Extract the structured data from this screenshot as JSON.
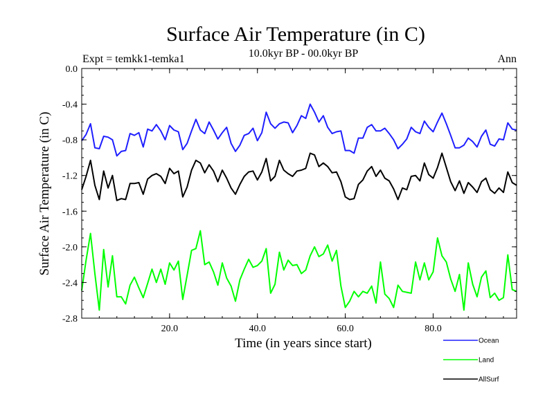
{
  "chart_data": {
    "type": "line",
    "title": "Surface Air Temperature (in C)",
    "subtitle_left": "Expt = temkk1-temka1",
    "subtitle_center": "10.0kyr BP - 00.0kyr BP",
    "subtitle_right": "Ann",
    "xlabel": "Time (in years since start)",
    "ylabel": "Surface Air Temperature (in C)",
    "xlim": [
      0,
      99
    ],
    "ylim": [
      -2.8,
      0.0
    ],
    "x_ticks": [
      20,
      40,
      60,
      80
    ],
    "x_tick_labels": [
      "20.0",
      "40.0",
      "60.0",
      "80.0"
    ],
    "y_ticks": [
      0.0,
      -0.4,
      -0.8,
      -1.2,
      -1.6,
      -2.0,
      -2.4,
      -2.8
    ],
    "y_tick_labels": [
      "0.0",
      "-0.4",
      "-0.8",
      "-1.2",
      "-1.6",
      "-2.0",
      "-2.4",
      "-2.8"
    ],
    "legend_position": "bottom-right",
    "x": [
      0,
      1,
      2,
      3,
      4,
      5,
      6,
      7,
      8,
      9,
      10,
      11,
      12,
      13,
      14,
      15,
      16,
      17,
      18,
      19,
      20,
      21,
      22,
      23,
      24,
      25,
      26,
      27,
      28,
      29,
      30,
      31,
      32,
      33,
      34,
      35,
      36,
      37,
      38,
      39,
      40,
      41,
      42,
      43,
      44,
      45,
      46,
      47,
      48,
      49,
      50,
      51,
      52,
      53,
      54,
      55,
      56,
      57,
      58,
      59,
      60,
      61,
      62,
      63,
      64,
      65,
      66,
      67,
      68,
      69,
      70,
      71,
      72,
      73,
      74,
      75,
      76,
      77,
      78,
      79,
      80,
      81,
      82,
      83,
      84,
      85,
      86,
      87,
      88,
      89,
      90,
      91,
      92,
      93,
      94,
      95,
      96,
      97,
      98,
      99
    ],
    "series": [
      {
        "name": "Ocean",
        "color": "#1e1eff",
        "values": [
          -0.81,
          -0.74,
          -0.62,
          -0.89,
          -0.9,
          -0.76,
          -0.77,
          -0.8,
          -0.98,
          -0.93,
          -0.92,
          -0.73,
          -0.75,
          -0.72,
          -0.88,
          -0.68,
          -0.7,
          -0.63,
          -0.7,
          -0.8,
          -0.64,
          -0.69,
          -0.71,
          -0.91,
          -0.84,
          -0.7,
          -0.57,
          -0.69,
          -0.73,
          -0.6,
          -0.69,
          -0.79,
          -0.72,
          -0.66,
          -0.84,
          -0.93,
          -0.86,
          -0.75,
          -0.73,
          -0.67,
          -0.81,
          -0.72,
          -0.49,
          -0.62,
          -0.67,
          -0.62,
          -0.6,
          -0.61,
          -0.72,
          -0.64,
          -0.53,
          -0.56,
          -0.4,
          -0.49,
          -0.6,
          -0.53,
          -0.66,
          -0.73,
          -0.71,
          -0.7,
          -0.92,
          -0.92,
          -0.95,
          -0.78,
          -0.78,
          -0.66,
          -0.63,
          -0.7,
          -0.7,
          -0.67,
          -0.73,
          -0.8,
          -0.9,
          -0.85,
          -0.79,
          -0.66,
          -0.71,
          -0.73,
          -0.59,
          -0.66,
          -0.71,
          -0.6,
          -0.5,
          -0.62,
          -0.75,
          -0.89,
          -0.89,
          -0.86,
          -0.78,
          -0.82,
          -0.88,
          -0.76,
          -0.69,
          -0.85,
          -0.87,
          -0.79,
          -0.8,
          -0.61,
          -0.68,
          -0.69
        ]
      },
      {
        "name": "Land",
        "color": "#00ff00",
        "values": [
          -2.49,
          -2.15,
          -1.85,
          -2.3,
          -2.71,
          -2.03,
          -2.45,
          -2.1,
          -2.56,
          -2.56,
          -2.64,
          -2.43,
          -2.34,
          -2.46,
          -2.57,
          -2.41,
          -2.25,
          -2.4,
          -2.25,
          -2.42,
          -2.18,
          -2.26,
          -2.16,
          -2.59,
          -2.32,
          -2.04,
          -2.02,
          -1.82,
          -2.2,
          -2.17,
          -2.28,
          -2.43,
          -2.18,
          -2.35,
          -2.44,
          -2.61,
          -2.37,
          -2.25,
          -2.14,
          -2.23,
          -2.21,
          -2.16,
          -2.02,
          -2.52,
          -2.42,
          -2.06,
          -2.26,
          -2.15,
          -2.21,
          -2.2,
          -2.3,
          -2.26,
          -2.1,
          -2.0,
          -2.11,
          -2.08,
          -1.98,
          -2.16,
          -2.04,
          -2.44,
          -2.68,
          -2.61,
          -2.5,
          -2.56,
          -2.5,
          -2.52,
          -2.44,
          -2.63,
          -2.17,
          -2.53,
          -2.58,
          -2.68,
          -2.43,
          -2.5,
          -2.51,
          -2.52,
          -2.17,
          -2.37,
          -2.18,
          -2.37,
          -2.28,
          -1.9,
          -2.1,
          -2.17,
          -2.36,
          -2.5,
          -2.31,
          -2.71,
          -2.18,
          -2.42,
          -2.56,
          -2.34,
          -2.27,
          -2.57,
          -2.52,
          -2.6,
          -2.57,
          -2.09,
          -2.48,
          -2.5
        ]
      },
      {
        "name": "AllSurf",
        "color": "#000000",
        "values": [
          -1.36,
          -1.21,
          -1.03,
          -1.31,
          -1.47,
          -1.15,
          -1.34,
          -1.2,
          -1.48,
          -1.46,
          -1.47,
          -1.29,
          -1.29,
          -1.28,
          -1.41,
          -1.24,
          -1.2,
          -1.18,
          -1.21,
          -1.29,
          -1.12,
          -1.18,
          -1.15,
          -1.44,
          -1.33,
          -1.14,
          -1.03,
          -1.06,
          -1.17,
          -1.08,
          -1.15,
          -1.27,
          -1.14,
          -1.23,
          -1.34,
          -1.41,
          -1.3,
          -1.21,
          -1.16,
          -1.15,
          -1.25,
          -1.16,
          -1.01,
          -1.26,
          -1.21,
          -1.03,
          -1.14,
          -1.18,
          -1.21,
          -1.15,
          -1.14,
          -1.12,
          -0.95,
          -0.97,
          -1.1,
          -1.06,
          -1.1,
          -1.17,
          -1.16,
          -1.27,
          -1.44,
          -1.47,
          -1.46,
          -1.3,
          -1.25,
          -1.15,
          -1.1,
          -1.21,
          -1.14,
          -1.23,
          -1.26,
          -1.35,
          -1.47,
          -1.34,
          -1.36,
          -1.21,
          -1.2,
          -1.26,
          -1.06,
          -1.19,
          -1.23,
          -1.11,
          -0.95,
          -1.11,
          -1.27,
          -1.37,
          -1.26,
          -1.4,
          -1.28,
          -1.33,
          -1.39,
          -1.27,
          -1.23,
          -1.36,
          -1.4,
          -1.34,
          -1.39,
          -1.16,
          -1.28,
          -1.31
        ]
      }
    ]
  }
}
